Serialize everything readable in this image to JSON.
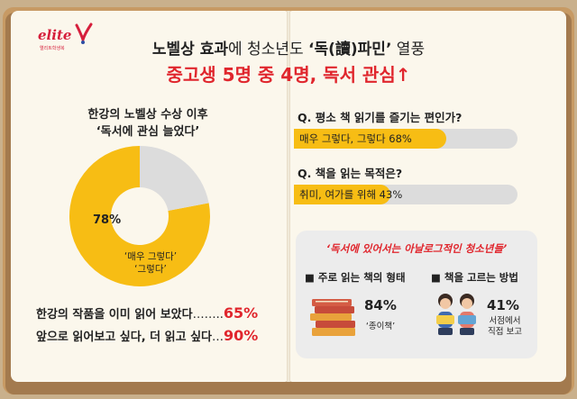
{
  "logo": {
    "name": "elite",
    "tagline": "엘리트학생복"
  },
  "header": {
    "headline_bold1": "노벨상 효과",
    "headline_mid": "에 청소년도 ",
    "headline_bold2": "‘독(讀)파민’",
    "headline_end": " 열풍",
    "subhead": "중고생 5명 중 4명, 독서 관심↑"
  },
  "left": {
    "title_line1": "한강의 노벨상 수상 이후",
    "title_line2": "‘독서에 관심 늘었다’",
    "pie_percent_label": "78%",
    "pie_answer_line1": "‘매우 그렇다’",
    "pie_answer_line2": "‘그렇다’",
    "stat1_text": "한강의 작품을 이미 읽어 보았다",
    "stat1_dots": "……..",
    "stat1_pct": "65%",
    "stat2_text": "앞으로 읽어보고 싶다, 더 읽고 싶다",
    "stat2_dots": "…",
    "stat2_pct": "90%"
  },
  "chart_data": {
    "type": "pie",
    "categories": [
      "매우 그렇다 / 그렇다",
      "기타"
    ],
    "values": [
      78,
      22
    ],
    "colors": [
      "#f7bd14",
      "#dcdcdc"
    ]
  },
  "right": {
    "q1": "Q. 평소 책 읽기를 즐기는 편인가?",
    "q1_answer": "매우 그렇다, 그렇다  68%",
    "q1_value": 68,
    "q2": "Q. 책을 읽는 목적은?",
    "q2_answer": "취미, 여가를 위해  43%",
    "q2_value": 43,
    "box_title": "‘독서에 있어서는 아날로그적인 청소년들’",
    "left_label": "■ 주로 읽는 책의 형태",
    "left_pct": "84%",
    "left_desc": "‘종이책’",
    "right_label": "■ 책을 고르는 방법",
    "right_pct": "41%",
    "right_desc1": "서점에서",
    "right_desc2": "직접 보고"
  },
  "colors": {
    "accent_red": "#e0262d",
    "accent_yellow": "#f7bd14",
    "track_gray": "#dcdcdc"
  }
}
